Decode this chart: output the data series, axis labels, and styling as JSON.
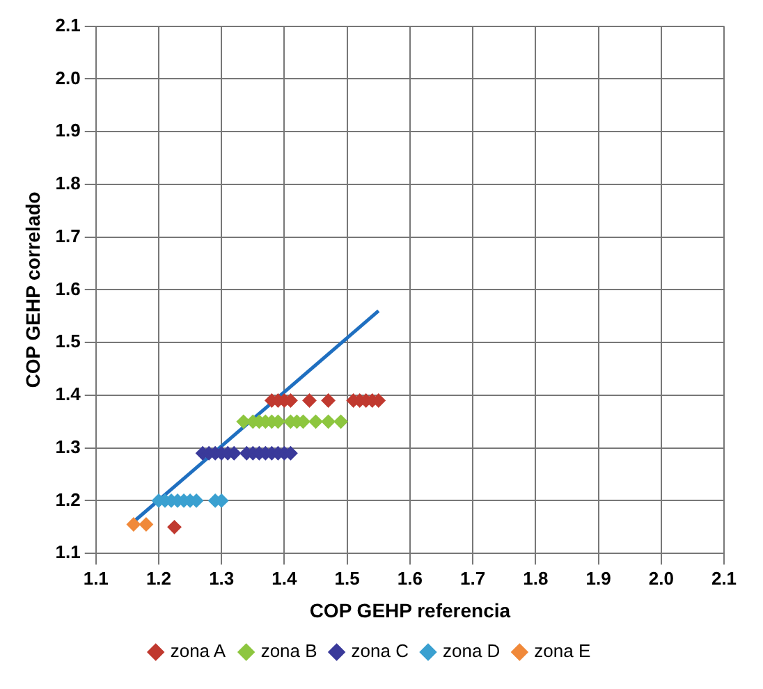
{
  "chart_data": {
    "type": "scatter",
    "xlabel": "COP GEHP referencia",
    "ylabel": "COP GEHP correlado",
    "xlim": [
      1.1,
      2.1
    ],
    "ylim": [
      1.1,
      2.1
    ],
    "xticks": [
      1.1,
      1.2,
      1.3,
      1.4,
      1.5,
      1.6,
      1.7,
      1.8,
      1.9,
      {
        "value": 2,
        "label": "2.0"
      },
      2.1
    ],
    "yticks": [
      1.1,
      1.2,
      1.3,
      1.4,
      1.5,
      1.6,
      1.7,
      1.8,
      1.9,
      {
        "value": 2,
        "label": "2.0"
      },
      2.1
    ],
    "grid": true,
    "legend": "bottom",
    "marker": "diamond",
    "series": [
      {
        "name": "zona A",
        "color": "#c0392f",
        "x": [
          1.38,
          1.39,
          1.4,
          1.41,
          1.44,
          1.47,
          1.51,
          1.52,
          1.53,
          1.54,
          1.55,
          1.225
        ],
        "values": [
          1.39,
          1.39,
          1.39,
          1.39,
          1.39,
          1.39,
          1.39,
          1.39,
          1.39,
          1.39,
          1.39,
          1.15
        ]
      },
      {
        "name": "zona B",
        "color": "#8dc63f",
        "x": [
          1.335,
          1.35,
          1.36,
          1.37,
          1.38,
          1.39,
          1.41,
          1.42,
          1.43,
          1.45,
          1.47,
          1.49
        ],
        "values": [
          1.35,
          1.35,
          1.35,
          1.35,
          1.35,
          1.35,
          1.35,
          1.35,
          1.35,
          1.35,
          1.35,
          1.35
        ]
      },
      {
        "name": "zona C",
        "color": "#3a3a9a",
        "x": [
          1.27,
          1.28,
          1.29,
          1.3,
          1.31,
          1.32,
          1.34,
          1.35,
          1.36,
          1.37,
          1.38,
          1.39,
          1.4,
          1.41
        ],
        "values": [
          1.29,
          1.29,
          1.29,
          1.29,
          1.29,
          1.29,
          1.29,
          1.29,
          1.29,
          1.29,
          1.29,
          1.29,
          1.29,
          1.29
        ]
      },
      {
        "name": "zona D",
        "color": "#3aa0d0",
        "x": [
          1.2,
          1.21,
          1.22,
          1.23,
          1.24,
          1.25,
          1.26,
          1.29,
          1.3
        ],
        "values": [
          1.2,
          1.2,
          1.2,
          1.2,
          1.2,
          1.2,
          1.2,
          1.2,
          1.2
        ]
      },
      {
        "name": "zona E",
        "color": "#f0893a",
        "x": [
          1.16,
          1.18
        ],
        "values": [
          1.155,
          1.155
        ]
      },
      {
        "type": "line",
        "marker": "none",
        "color": "#1f6fc0",
        "x": [
          1.16,
          1.55
        ],
        "values": [
          1.16,
          1.56
        ]
      }
    ]
  }
}
